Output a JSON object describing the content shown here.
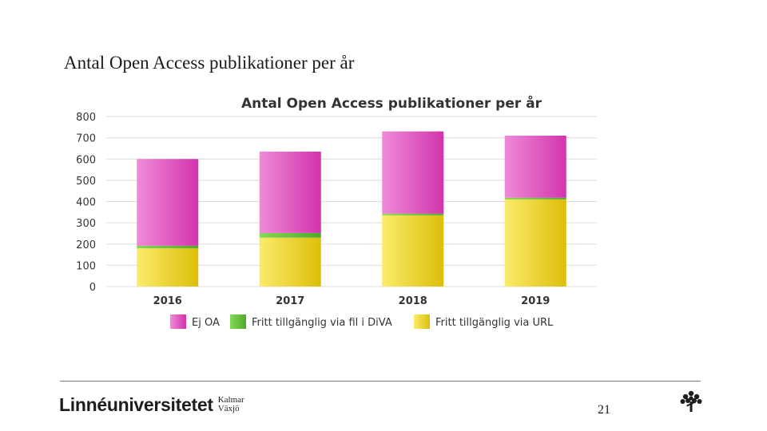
{
  "slide": {
    "title": "Antal Open Access publikationer per år",
    "page_number": "21",
    "brand": {
      "name": "Linnéuniversitetet",
      "city1": "Kalmar",
      "city2": "Växjö"
    }
  },
  "colors": {
    "ej_oa": "#e15fc4",
    "diva": "#6dc23c",
    "url": "#f0d92a"
  },
  "chart_data": {
    "type": "bar",
    "stacked": true,
    "title": "Antal Open Access publikationer per år",
    "categories": [
      "2016",
      "2017",
      "2018",
      "2019"
    ],
    "series": [
      {
        "name": "Fritt tillgänglig via URL",
        "key": "url",
        "values": [
          180,
          230,
          335,
          410
        ]
      },
      {
        "name": "Fritt tillgänglig via fil i DiVA",
        "key": "diva",
        "values": [
          12,
          22,
          8,
          8
        ]
      },
      {
        "name": "Ej OA",
        "key": "ej_oa",
        "values": [
          408,
          383,
          387,
          292
        ]
      }
    ],
    "legend": [
      "Ej OA",
      "Fritt tillgänglig via fil i DiVA",
      "Fritt tillgänglig via URL"
    ],
    "ylim": [
      0,
      800
    ],
    "yticks": [
      0,
      100,
      200,
      300,
      400,
      500,
      600,
      700,
      800
    ],
    "xlabel": "",
    "ylabel": "",
    "grid": true,
    "legend_position": "bottom"
  }
}
